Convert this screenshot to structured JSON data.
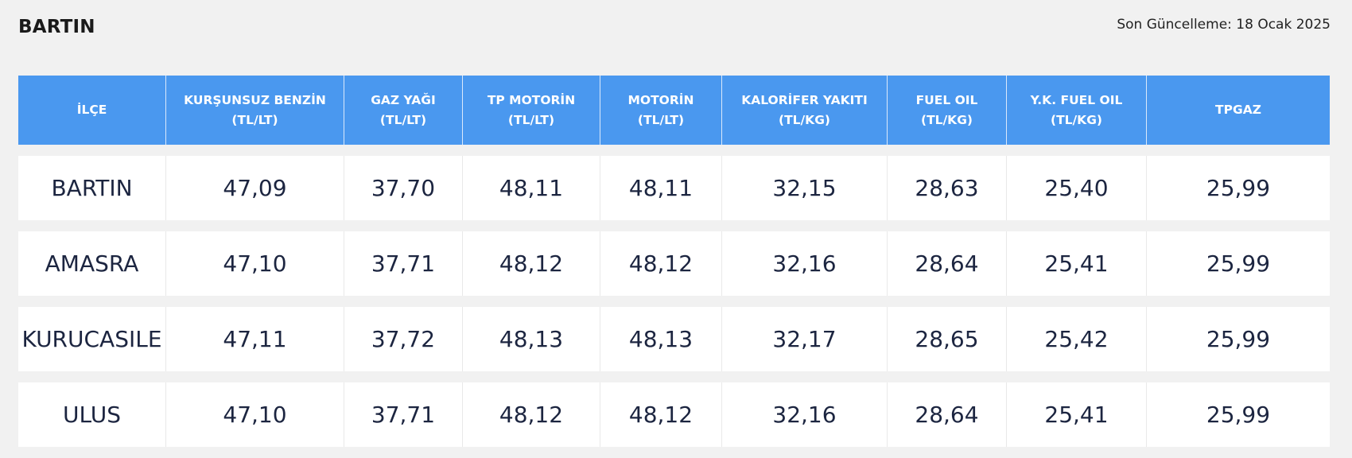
{
  "header": {
    "city": "BARTIN",
    "updated_label": "Son Güncelleme:",
    "updated_date": "18 Ocak 2025"
  },
  "table": {
    "columns": [
      {
        "name": "İLÇE",
        "unit": ""
      },
      {
        "name": "KURŞUNSUZ BENZİN",
        "unit": "(TL/LT)"
      },
      {
        "name": "GAZ YAĞI",
        "unit": "(TL/LT)"
      },
      {
        "name": "TP MOTORİN",
        "unit": "(TL/LT)"
      },
      {
        "name": "MOTORİN",
        "unit": "(TL/LT)"
      },
      {
        "name": "KALORİFER YAKITI",
        "unit": "(TL/KG)"
      },
      {
        "name": "FUEL OIL",
        "unit": "(TL/KG)"
      },
      {
        "name": "Y.K. FUEL OIL",
        "unit": "(TL/KG)"
      },
      {
        "name": "TPGAZ",
        "unit": ""
      }
    ],
    "rows": [
      [
        "BARTIN",
        "47,09",
        "37,70",
        "48,11",
        "48,11",
        "32,15",
        "28,63",
        "25,40",
        "25,99"
      ],
      [
        "AMASRA",
        "47,10",
        "37,71",
        "48,12",
        "48,12",
        "32,16",
        "28,64",
        "25,41",
        "25,99"
      ],
      [
        "KURUCASILE",
        "47,11",
        "37,72",
        "48,13",
        "48,13",
        "32,17",
        "28,65",
        "25,42",
        "25,99"
      ],
      [
        "ULUS",
        "47,10",
        "37,71",
        "48,12",
        "48,12",
        "32,16",
        "28,64",
        "25,41",
        "25,99"
      ]
    ]
  }
}
